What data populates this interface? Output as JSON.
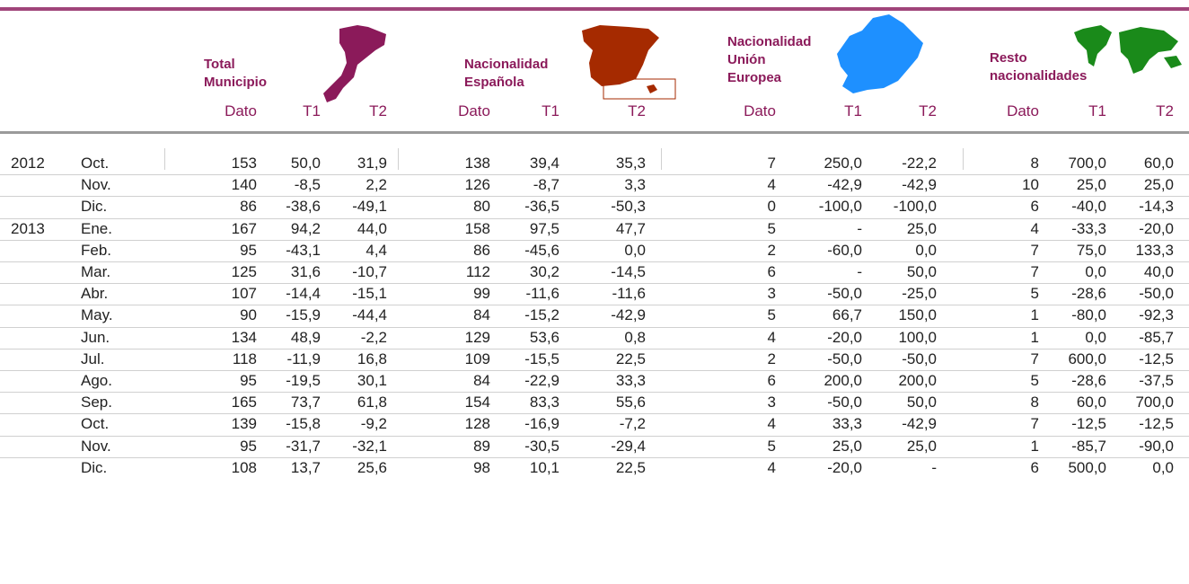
{
  "table": {
    "groups": [
      {
        "title": [
          "Total",
          "Municipio"
        ],
        "columns": [
          "Dato",
          "T1",
          "T2"
        ]
      },
      {
        "title": [
          "Nacionalidad",
          "Española"
        ],
        "columns": [
          "Dato",
          "T1",
          "T2"
        ]
      },
      {
        "title": [
          "Nacionalidad",
          "Unión",
          "Europea"
        ],
        "columns": [
          "Dato",
          "T1",
          "T2"
        ]
      },
      {
        "title": [
          "Resto",
          "nacionalidades"
        ],
        "columns": [
          "Dato",
          "T1",
          "T2"
        ]
      }
    ],
    "rows": [
      {
        "year": "2012",
        "month": "Oct.",
        "values": [
          "153",
          "50,0",
          "31,9",
          "138",
          "39,4",
          "35,3",
          "7",
          "250,0",
          "-22,2",
          "8",
          "700,0",
          "60,0"
        ]
      },
      {
        "month": "Nov.",
        "values": [
          "140",
          "-8,5",
          "2,2",
          "126",
          "-8,7",
          "3,3",
          "4",
          "-42,9",
          "-42,9",
          "10",
          "25,0",
          "25,0"
        ]
      },
      {
        "month": "Dic.",
        "values": [
          "86",
          "-38,6",
          "-49,1",
          "80",
          "-36,5",
          "-50,3",
          "0",
          "-100,0",
          "-100,0",
          "6",
          "-40,0",
          "-14,3"
        ]
      },
      {
        "year": "2013",
        "month": "Ene.",
        "values": [
          "167",
          "94,2",
          "44,0",
          "158",
          "97,5",
          "47,7",
          "5",
          "-",
          "25,0",
          "4",
          "-33,3",
          "-20,0"
        ]
      },
      {
        "month": "Feb.",
        "values": [
          "95",
          "-43,1",
          "4,4",
          "86",
          "-45,6",
          "0,0",
          "2",
          "-60,0",
          "0,0",
          "7",
          "75,0",
          "133,3"
        ]
      },
      {
        "month": "Mar.",
        "values": [
          "125",
          "31,6",
          "-10,7",
          "112",
          "30,2",
          "-14,5",
          "6",
          "-",
          "50,0",
          "7",
          "0,0",
          "40,0"
        ]
      },
      {
        "month": "Abr.",
        "values": [
          "107",
          "-14,4",
          "-15,1",
          "99",
          "-11,6",
          "-11,6",
          "3",
          "-50,0",
          "-25,0",
          "5",
          "-28,6",
          "-50,0"
        ]
      },
      {
        "month": "May.",
        "values": [
          "90",
          "-15,9",
          "-44,4",
          "84",
          "-15,2",
          "-42,9",
          "5",
          "66,7",
          "150,0",
          "1",
          "-80,0",
          "-92,3"
        ]
      },
      {
        "month": "Jun.",
        "values": [
          "134",
          "48,9",
          "-2,2",
          "129",
          "53,6",
          "0,8",
          "4",
          "-20,0",
          "100,0",
          "1",
          "0,0",
          "-85,7"
        ]
      },
      {
        "month": "Jul.",
        "values": [
          "118",
          "-11,9",
          "16,8",
          "109",
          "-15,5",
          "22,5",
          "2",
          "-50,0",
          "-50,0",
          "7",
          "600,0",
          "-12,5"
        ]
      },
      {
        "month": "Ago.",
        "values": [
          "95",
          "-19,5",
          "30,1",
          "84",
          "-22,9",
          "33,3",
          "6",
          "200,0",
          "200,0",
          "5",
          "-28,6",
          "-37,5"
        ]
      },
      {
        "month": "Sep.",
        "values": [
          "165",
          "73,7",
          "61,8",
          "154",
          "83,3",
          "55,6",
          "3",
          "-50,0",
          "50,0",
          "8",
          "60,0",
          "700,0"
        ]
      },
      {
        "month": "Oct.",
        "values": [
          "139",
          "-15,8",
          "-9,2",
          "128",
          "-16,9",
          "-7,2",
          "4",
          "33,3",
          "-42,9",
          "7",
          "-12,5",
          "-12,5"
        ]
      },
      {
        "month": "Nov.",
        "values": [
          "95",
          "-31,7",
          "-32,1",
          "89",
          "-30,5",
          "-29,4",
          "5",
          "25,0",
          "25,0",
          "1",
          "-85,7",
          "-90,0"
        ]
      },
      {
        "month": "Dic.",
        "values": [
          "108",
          "13,7",
          "25,6",
          "98",
          "10,1",
          "22,5",
          "4",
          "-20,0",
          "-",
          "6",
          "500,0",
          "0,0"
        ]
      }
    ]
  }
}
